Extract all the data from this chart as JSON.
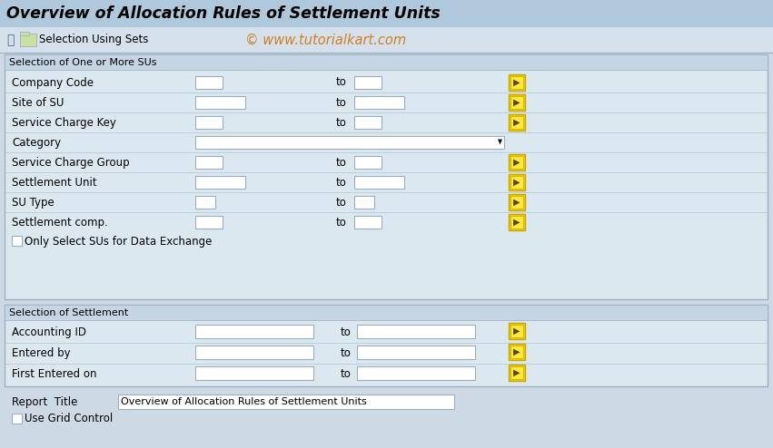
{
  "title": "Overview of Allocation Rules of Settlement Units",
  "watermark": "© www.tutorialkart.com",
  "bg_color": "#cdd9e5",
  "toolbar_bg": "#d4e0eb",
  "section_bg": "#dce8f0",
  "section_header_bg": "#c5d5e4",
  "white": "#ffffff",
  "border_color": "#9ab0c0",
  "text_color": "#000000",
  "section1_title": "Selection of One or More SUs",
  "section2_title": "Selection of Settlement",
  "checkbox_label": "Only Select SUs for Data Exchange",
  "report_title_label": "Report  Title",
  "report_title_value": "Overview of Allocation Rules of Settlement Units",
  "grid_control_label": "Use Grid Control",
  "title_bg": "#b0c8dc",
  "row_sep_color": "#b0c4d4",
  "arrow_btn_outer": "#c8a800",
  "arrow_btn_inner": "#ffe840",
  "arrow_btn_mid": "#f0d000"
}
